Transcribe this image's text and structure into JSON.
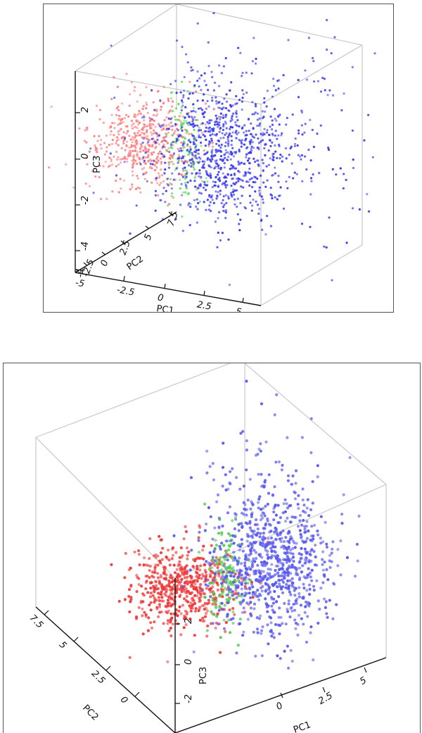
{
  "chart_data": [
    {
      "type": "scatter",
      "title": "",
      "xlabel": "PC1",
      "ylabel": "PC2",
      "zlabel": "PC3",
      "xlim": [
        -5,
        6
      ],
      "ylim": [
        -2.5,
        8.5
      ],
      "zlim": [
        -5,
        4
      ],
      "x_ticks": [
        "-5",
        "-2.5",
        "0",
        "2.5",
        "5"
      ],
      "y_ticks": [
        "-2.5",
        "0",
        "2.5",
        "5",
        "7.5"
      ],
      "z_ticks": [
        "-4",
        "-2",
        "0",
        "2"
      ],
      "grid": false,
      "series": [
        {
          "color": "#fa8080",
          "values": [
            [
              -3.5,
              -1,
              0.5
            ],
            [
              -3,
              -0.5,
              -0.5
            ],
            [
              -4,
              0,
              1
            ],
            [
              -3.2,
              -1.5,
              0
            ],
            [
              -2.5,
              0.5,
              1.5
            ],
            [
              -3.8,
              -0.8,
              -1.2
            ],
            [
              -2.8,
              -1.2,
              0.8
            ],
            [
              -3.3,
              0.2,
              -0.3
            ],
            [
              -4.2,
              -0.5,
              0.2
            ],
            [
              -2.2,
              -0.3,
              -0.8
            ],
            [
              -3.6,
              0.8,
              1.1
            ],
            [
              -2.6,
              -1.8,
              0.3
            ]
          ]
        },
        {
          "color": "#66dd66",
          "values": [
            [
              -0.5,
              1,
              0.5
            ],
            [
              -0.2,
              1.5,
              -1
            ],
            [
              0,
              0.5,
              1.5
            ],
            [
              -0.8,
              2,
              0
            ],
            [
              0.2,
              1.2,
              -0.4
            ],
            [
              -0.4,
              0.6,
              0.9
            ]
          ]
        },
        {
          "color": "#3a3aee",
          "values": [
            [
              1,
              2,
              0.5
            ],
            [
              2,
              3,
              -0.5
            ],
            [
              1.5,
              2.5,
              1
            ],
            [
              3,
              4,
              -1.5
            ],
            [
              2.5,
              1.5,
              0
            ],
            [
              0.8,
              3.5,
              -0.8
            ],
            [
              3.5,
              2.8,
              0.4
            ],
            [
              1.8,
              4.2,
              -1.1
            ],
            [
              4.5,
              5.5,
              1.8
            ],
            [
              2.2,
              1.8,
              -2.5
            ],
            [
              5,
              6,
              2.8
            ]
          ]
        }
      ]
    },
    {
      "type": "scatter",
      "title": "",
      "xlabel": "PC1",
      "ylabel": "PC2",
      "zlabel": "PC3",
      "x_ticks": [
        "0",
        "2.5",
        "5"
      ],
      "y_ticks": [
        "0",
        "2.5",
        "5",
        "7.5"
      ],
      "z_ticks": [
        "-2",
        "0",
        "2"
      ],
      "grid": false,
      "series": [
        {
          "color": "#ee3a3a"
        },
        {
          "color": "#55cc55"
        },
        {
          "color": "#5a5aee"
        }
      ]
    }
  ]
}
